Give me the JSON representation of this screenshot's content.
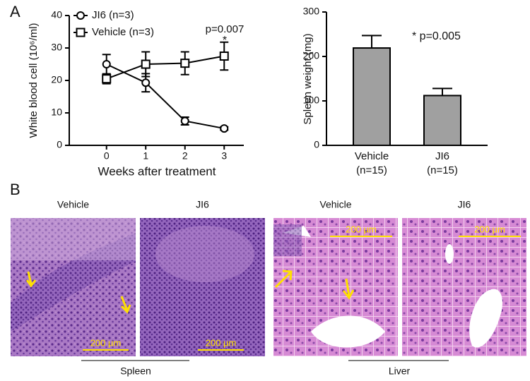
{
  "panel_labels": [
    "A",
    "B"
  ],
  "chart_data": [
    {
      "type": "line",
      "xlabel": "Weeks after treatment",
      "ylabel": "White blood cell (10⁶/ml)",
      "x": [
        0,
        1,
        2,
        3
      ],
      "xlim": [
        -0.95,
        3.5
      ],
      "xticks": [
        0,
        1,
        2,
        3
      ],
      "ylim": [
        0,
        40
      ],
      "yticks": [
        0,
        10,
        20,
        30,
        40
      ],
      "series": [
        {
          "name": "JI6 (n=3)",
          "marker": "circle",
          "color": "#000000",
          "values": [
            25,
            19.3,
            7.5,
            5.2
          ],
          "errors": [
            3,
            2.8,
            1.2,
            0.5
          ]
        },
        {
          "name": "Vehicle (n=3)",
          "marker": "square",
          "color": "#000000",
          "values": [
            20.5,
            25,
            25.3,
            27.5
          ],
          "errors": [
            1.5,
            3.8,
            3.5,
            4.3
          ]
        }
      ],
      "annotations": [
        "p=0.007",
        "*"
      ]
    },
    {
      "type": "bar",
      "ylabel": "Spleen weight (mg)",
      "categories": [
        "Vehicle",
        "JI6"
      ],
      "category_notes": [
        "(n=15)",
        "(n=15)"
      ],
      "values": [
        219,
        112
      ],
      "errors": [
        28,
        16
      ],
      "color": "#a0a0a0",
      "ylim": [
        0,
        300
      ],
      "yticks": [
        0,
        100,
        200,
        300
      ],
      "annotations": [
        "* p=0.005"
      ]
    }
  ],
  "histology": {
    "images": [
      {
        "label": "Vehicle",
        "scale_bar": "200 µm"
      },
      {
        "label": "JI6",
        "scale_bar": "200 µm"
      },
      {
        "label": "Vehicle",
        "scale_bar": "200 µm"
      },
      {
        "label": "JI6",
        "scale_bar": "200 µm"
      }
    ],
    "groups": [
      "Spleen",
      "Liver"
    ]
  }
}
